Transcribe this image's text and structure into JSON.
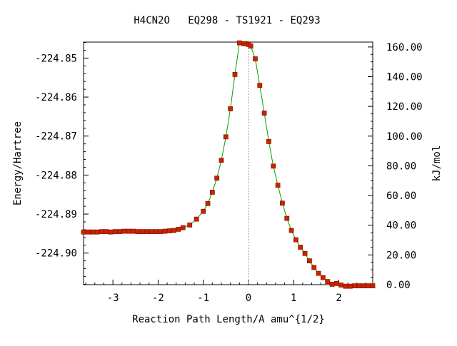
{
  "chart_data": {
    "type": "line",
    "title": "H4CN2O   EQ298 - TS1921 - EQ293",
    "xlabel": "Reaction Path Length/A amu^{1/2}",
    "ylabel": "Energy/Hartree",
    "y2label": "kJ/mol",
    "xlim": [
      -3.65,
      2.75
    ],
    "ylim": [
      -224.9081,
      -224.8459
    ],
    "y2lim": [
      0,
      163.3
    ],
    "x_ticks": [
      -3,
      -2,
      -1,
      0,
      1,
      2
    ],
    "x_tick_labels": [
      "-3",
      "-2",
      "-1",
      "0",
      "1",
      "2"
    ],
    "y_ticks": [
      -224.85,
      -224.86,
      -224.87,
      -224.88,
      -224.89,
      -224.9
    ],
    "y_tick_labels": [
      "-224.85",
      "-224.86",
      "-224.87",
      "-224.88",
      "-224.89",
      "-224.90"
    ],
    "y2_ticks": [
      0,
      20,
      40,
      60,
      80,
      100,
      120,
      140,
      160
    ],
    "y2_tick_labels": [
      "0.00",
      "20.00",
      "40.00",
      "60.00",
      "80.00",
      "100.00",
      "120.00",
      "140.00",
      "160.00"
    ],
    "ts_marker_x": 0,
    "grid": false,
    "line_color": "#00a000",
    "marker_color": "#cc2200",
    "marker_edge_color": "#8b1a00",
    "ts_line_color": "#999999",
    "series": [
      {
        "x": [
          -3.65,
          -3.55,
          -3.45,
          -3.35,
          -3.25,
          -3.15,
          -3.05,
          -2.95,
          -2.85,
          -2.75,
          -2.65,
          -2.55,
          -2.45,
          -2.35,
          -2.25,
          -2.15,
          -2.05,
          -1.95,
          -1.85,
          -1.75,
          -1.65,
          -1.55,
          -1.45,
          -1.3,
          -1.15,
          -1.0,
          -0.9,
          -0.8,
          -0.7,
          -0.6,
          -0.5,
          -0.4,
          -0.3,
          -0.2,
          -0.1,
          -0.05,
          0.0,
          0.05,
          0.15,
          0.25,
          0.35,
          0.45,
          0.55,
          0.65,
          0.75,
          0.85,
          0.95,
          1.05,
          1.15,
          1.25,
          1.35,
          1.45,
          1.55,
          1.65,
          1.75,
          1.85,
          1.95,
          2.05,
          2.15,
          2.25,
          2.35,
          2.45,
          2.55,
          2.65,
          2.75
        ],
        "y": [
          -224.8946,
          -224.8946,
          -224.8946,
          -224.8946,
          -224.8945,
          -224.8945,
          -224.8946,
          -224.8945,
          -224.8945,
          -224.8944,
          -224.8944,
          -224.8944,
          -224.8945,
          -224.8945,
          -224.8945,
          -224.8945,
          -224.8945,
          -224.8945,
          -224.8944,
          -224.8943,
          -224.8942,
          -224.8939,
          -224.8935,
          -224.8928,
          -224.8913,
          -224.8893,
          -224.8873,
          -224.8844,
          -224.8808,
          -224.8762,
          -224.8702,
          -224.863,
          -224.8542,
          -224.8461,
          -224.8463,
          -224.8463,
          -224.8465,
          -224.8469,
          -224.8502,
          -224.857,
          -224.8641,
          -224.8714,
          -224.8777,
          -224.8826,
          -224.8872,
          -224.8911,
          -224.8942,
          -224.8966,
          -224.8985,
          -224.9001,
          -224.902,
          -224.9037,
          -224.9052,
          -224.9063,
          -224.9073,
          -224.908,
          -224.9078,
          -224.9082,
          -224.9085,
          -224.9085,
          -224.9084,
          -224.9084,
          -224.9084,
          -224.9084,
          -224.9084
        ]
      }
    ]
  }
}
